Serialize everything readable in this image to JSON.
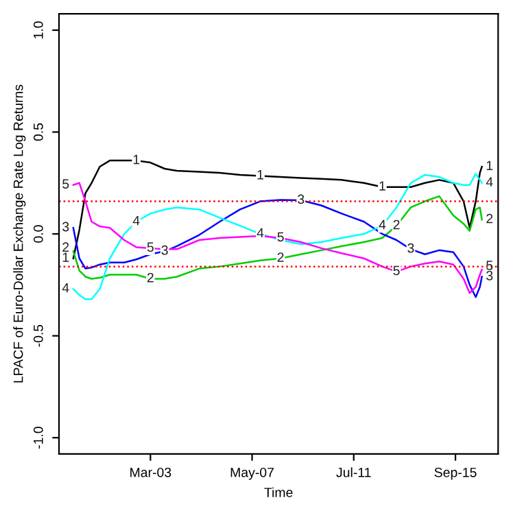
{
  "chart_data": {
    "type": "line",
    "xlabel": "Time",
    "ylabel": "LPACF of Euro-Dollar Exchange Rate Log Returns",
    "x": [
      "2000-01",
      "2000-04",
      "2000-07",
      "2000-10",
      "2001-02",
      "2001-07",
      "2002-02",
      "2002-08",
      "2003-03",
      "2003-10",
      "2004-04",
      "2005-03",
      "2006-01",
      "2006-11",
      "2007-09",
      "2008-07",
      "2009-05",
      "2010-03",
      "2011-01",
      "2011-12",
      "2012-09",
      "2013-04",
      "2013-11",
      "2014-06",
      "2015-01",
      "2015-08",
      "2016-01",
      "2016-04",
      "2016-07",
      "2016-09",
      "2016-10"
    ],
    "series": [
      {
        "name": "1",
        "color": "#000000",
        "values": [
          -0.12,
          0.02,
          0.2,
          0.25,
          0.33,
          0.36,
          0.36,
          0.36,
          0.35,
          0.32,
          0.31,
          0.305,
          0.3,
          0.29,
          0.285,
          0.28,
          0.275,
          0.27,
          0.265,
          0.25,
          0.23,
          0.23,
          0.23,
          0.25,
          0.265,
          0.25,
          0.16,
          0.03,
          0.16,
          0.3,
          0.33
        ]
      },
      {
        "name": "2",
        "color": "#00cd00",
        "values": [
          -0.085,
          -0.18,
          -0.21,
          -0.22,
          -0.215,
          -0.2,
          -0.2,
          -0.2,
          -0.22,
          -0.22,
          -0.21,
          -0.17,
          -0.16,
          -0.145,
          -0.13,
          -0.12,
          -0.1,
          -0.08,
          -0.06,
          -0.04,
          -0.02,
          0.04,
          0.13,
          0.16,
          0.185,
          0.09,
          0.05,
          0.015,
          0.12,
          0.13,
          0.07
        ]
      },
      {
        "name": "3",
        "color": "#0000ff",
        "values": [
          0.03,
          -0.12,
          -0.17,
          -0.165,
          -0.15,
          -0.14,
          -0.14,
          -0.125,
          -0.1,
          -0.085,
          -0.06,
          -0.005,
          0.06,
          0.12,
          0.16,
          0.167,
          0.165,
          0.14,
          0.1,
          0.06,
          0.0,
          -0.03,
          -0.075,
          -0.1,
          -0.08,
          -0.09,
          -0.16,
          -0.25,
          -0.31,
          -0.26,
          -0.21
        ]
      },
      {
        "name": "4",
        "color": "#00ffff",
        "values": [
          -0.27,
          -0.3,
          -0.32,
          -0.32,
          -0.27,
          -0.12,
          0.0,
          0.06,
          0.1,
          0.12,
          0.13,
          0.12,
          0.08,
          0.04,
          0.0,
          -0.03,
          -0.05,
          -0.04,
          -0.02,
          0.0,
          0.04,
          0.13,
          0.25,
          0.29,
          0.28,
          0.25,
          0.24,
          0.24,
          0.295,
          0.265,
          0.25
        ]
      },
      {
        "name": "5",
        "color": "#ff00ff",
        "values": [
          0.24,
          0.25,
          0.16,
          0.06,
          0.037,
          0.03,
          -0.03,
          -0.065,
          -0.07,
          -0.075,
          -0.075,
          -0.03,
          -0.02,
          -0.015,
          -0.01,
          -0.02,
          -0.04,
          -0.07,
          -0.095,
          -0.12,
          -0.16,
          -0.185,
          -0.16,
          -0.145,
          -0.135,
          -0.15,
          -0.22,
          -0.29,
          -0.26,
          -0.2,
          -0.175
        ]
      }
    ],
    "xlim": [
      "1999-06",
      "2017-06"
    ],
    "xticks": [
      {
        "value": "2003-03",
        "label": "Mar-03"
      },
      {
        "value": "2007-05",
        "label": "May-07"
      },
      {
        "value": "2011-07",
        "label": "Jul-11"
      },
      {
        "value": "2015-09",
        "label": "Sep-15"
      }
    ],
    "ylim": [
      -1.08,
      1.08
    ],
    "yticks": [
      {
        "value": -1.0,
        "label": "-1.0"
      },
      -0.5,
      {
        "value": 0.0,
        "label": "0.0"
      },
      0.5,
      {
        "value": 1.0,
        "label": "1.0"
      }
    ],
    "ref_lines": [
      {
        "axis": "y",
        "value": 0.16,
        "color": "#ff0000",
        "line_style": "dotted"
      },
      {
        "axis": "y",
        "value": -0.16,
        "color": "#ff0000",
        "line_style": "dotted"
      }
    ],
    "grid": false,
    "legend": false,
    "marker": "none",
    "line_style": "solid"
  }
}
